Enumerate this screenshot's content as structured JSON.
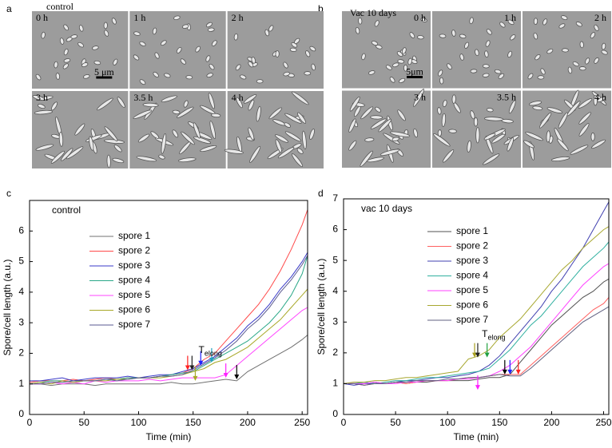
{
  "figure": {
    "labels": [
      "a",
      "b",
      "c",
      "d"
    ],
    "micrographs": [
      {
        "title": "control",
        "times": [
          "0 h",
          "1 h",
          "2 h",
          "3 h",
          "3.5 h",
          "4 h"
        ],
        "scale": "5 μm"
      },
      {
        "title": "Vac 10 days",
        "times": [
          "0 h",
          "1 h",
          "2 h",
          "3 h",
          "3.5 h",
          "4 h"
        ],
        "scale": "5μm"
      }
    ]
  },
  "chart_data": [
    {
      "type": "line",
      "title": "control",
      "x_label": "Time (min)",
      "y_label": "Spore/cell length (a.u.)",
      "annotation": {
        "text": "T",
        "sub": "elong"
      },
      "xlim": [
        0,
        255
      ],
      "xticks": [
        0,
        50,
        100,
        150,
        200,
        250
      ],
      "ylim": [
        0,
        7
      ],
      "yticks": [
        0,
        1,
        2,
        3,
        4,
        5,
        6
      ],
      "x": [
        0,
        10,
        20,
        30,
        40,
        50,
        60,
        70,
        80,
        90,
        100,
        110,
        120,
        130,
        140,
        150,
        160,
        170,
        180,
        190,
        200,
        210,
        220,
        230,
        240,
        250,
        255
      ],
      "series": [
        {
          "name": "spore 1",
          "color": "#707070",
          "values": [
            1.0,
            1.0,
            0.95,
            1.0,
            1.0,
            1.0,
            0.95,
            1.0,
            1.0,
            1.0,
            1.0,
            1.0,
            1.0,
            1.05,
            1.0,
            1.0,
            1.05,
            1.1,
            1.15,
            1.1,
            1.4,
            1.6,
            1.8,
            2.0,
            2.2,
            2.45,
            2.6
          ]
        },
        {
          "name": "spore 2",
          "color": "#ff4a4a",
          "values": [
            1.05,
            1.1,
            1.1,
            1.1,
            1.15,
            1.1,
            1.15,
            1.2,
            1.15,
            1.2,
            1.2,
            1.2,
            1.25,
            1.3,
            1.35,
            1.5,
            1.8,
            2.0,
            2.4,
            2.8,
            3.2,
            3.6,
            4.1,
            4.7,
            5.4,
            6.2,
            6.7
          ]
        },
        {
          "name": "spore 3",
          "color": "#3a3ac8",
          "values": [
            1.1,
            1.1,
            1.15,
            1.2,
            1.1,
            1.15,
            1.2,
            1.2,
            1.2,
            1.25,
            1.2,
            1.25,
            1.3,
            1.3,
            1.4,
            1.5,
            1.7,
            1.9,
            2.2,
            2.5,
            2.9,
            3.2,
            3.6,
            4.1,
            4.5,
            5.0,
            5.3
          ]
        },
        {
          "name": "spore 4",
          "color": "#2aa888",
          "values": [
            1.0,
            1.05,
            1.1,
            1.1,
            1.05,
            1.1,
            1.1,
            1.15,
            1.15,
            1.2,
            1.2,
            1.2,
            1.25,
            1.3,
            1.35,
            1.4,
            1.6,
            1.8,
            2.0,
            2.2,
            2.4,
            2.7,
            3.0,
            3.4,
            3.9,
            4.6,
            5.2
          ]
        },
        {
          "name": "spore 5",
          "color": "#ff44ff",
          "values": [
            1.0,
            1.0,
            1.05,
            1.0,
            1.05,
            1.0,
            1.1,
            1.05,
            1.1,
            1.1,
            1.1,
            1.15,
            1.1,
            1.15,
            1.2,
            1.2,
            1.2,
            1.2,
            1.3,
            1.6,
            1.9,
            2.2,
            2.5,
            2.8,
            3.1,
            3.4,
            3.5
          ]
        },
        {
          "name": "spore 6",
          "color": "#a8a828",
          "values": [
            1.0,
            1.05,
            1.0,
            1.1,
            1.05,
            1.1,
            1.1,
            1.1,
            1.15,
            1.15,
            1.2,
            1.2,
            1.2,
            1.25,
            1.3,
            1.4,
            1.5,
            1.7,
            1.8,
            2.0,
            2.2,
            2.5,
            2.8,
            3.1,
            3.5,
            3.9,
            4.1
          ]
        },
        {
          "name": "spore 7",
          "color": "#5a5a90",
          "values": [
            1.0,
            1.0,
            1.05,
            1.05,
            1.1,
            1.1,
            1.1,
            1.15,
            1.1,
            1.15,
            1.2,
            1.2,
            1.25,
            1.25,
            1.3,
            1.45,
            1.65,
            1.85,
            2.1,
            2.4,
            2.8,
            3.1,
            3.5,
            4.0,
            4.4,
            4.9,
            5.2
          ]
        }
      ],
      "arrows": [
        {
          "x": 145,
          "y": 1.45,
          "color": "#ff2020"
        },
        {
          "x": 149,
          "y": 1.45,
          "color": "#202020"
        },
        {
          "x": 152,
          "y": 1.1,
          "color": "#a8a828"
        },
        {
          "x": 157,
          "y": 1.6,
          "color": "#2020ff"
        },
        {
          "x": 167,
          "y": 1.7,
          "color": "#20a0c0"
        },
        {
          "x": 180,
          "y": 1.2,
          "color": "#ff20ff"
        },
        {
          "x": 190,
          "y": 1.15,
          "color": "#000000"
        }
      ]
    },
    {
      "type": "line",
      "title": "vac 10 days",
      "x_label": "Time (min)",
      "y_label": "Spore/cell length (a.u.)",
      "annotation": {
        "text": "T",
        "sub": "elong"
      },
      "xlim": [
        0,
        255
      ],
      "xticks": [
        0,
        50,
        100,
        150,
        200,
        250
      ],
      "ylim": [
        0,
        7
      ],
      "yticks": [
        0,
        1,
        2,
        3,
        4,
        5,
        6,
        7
      ],
      "x": [
        0,
        10,
        20,
        30,
        40,
        50,
        60,
        70,
        80,
        90,
        100,
        110,
        120,
        130,
        140,
        150,
        160,
        170,
        180,
        190,
        200,
        210,
        220,
        230,
        240,
        250,
        255
      ],
      "series": [
        {
          "name": "spore 1",
          "color": "#505050",
          "values": [
            1.0,
            1.0,
            1.0,
            1.05,
            1.0,
            1.05,
            1.0,
            1.05,
            1.05,
            1.1,
            1.1,
            1.1,
            1.1,
            1.15,
            1.2,
            1.2,
            1.3,
            1.7,
            2.1,
            2.5,
            2.9,
            3.2,
            3.5,
            3.8,
            4.0,
            4.3,
            4.4
          ]
        },
        {
          "name": "spore 2",
          "color": "#ff6060",
          "values": [
            1.0,
            1.0,
            0.95,
            1.0,
            1.0,
            1.05,
            1.0,
            1.05,
            1.1,
            1.1,
            1.1,
            1.15,
            1.2,
            1.2,
            1.25,
            1.3,
            1.3,
            1.3,
            1.6,
            1.9,
            2.2,
            2.5,
            2.8,
            3.1,
            3.4,
            3.6,
            3.8
          ]
        },
        {
          "name": "spore 3",
          "color": "#4040b0",
          "values": [
            1.0,
            0.95,
            1.0,
            1.0,
            1.0,
            1.05,
            1.1,
            1.1,
            1.15,
            1.2,
            1.2,
            1.25,
            1.3,
            1.4,
            1.6,
            1.9,
            2.3,
            2.7,
            3.1,
            3.5,
            4.0,
            4.4,
            4.9,
            5.4,
            6.0,
            6.6,
            6.9
          ]
        },
        {
          "name": "spore 4",
          "color": "#30b0a0",
          "values": [
            1.0,
            1.0,
            1.05,
            1.0,
            1.05,
            1.1,
            1.1,
            1.15,
            1.2,
            1.2,
            1.25,
            1.3,
            1.35,
            1.4,
            1.5,
            1.8,
            2.1,
            2.5,
            2.9,
            3.2,
            3.6,
            4.0,
            4.4,
            4.8,
            5.1,
            5.4,
            5.6
          ]
        },
        {
          "name": "spore 5",
          "color": "#ff40ff",
          "values": [
            1.0,
            1.0,
            1.0,
            1.05,
            1.0,
            1.0,
            1.05,
            1.05,
            1.1,
            1.1,
            1.1,
            1.15,
            1.15,
            1.2,
            1.25,
            1.4,
            1.6,
            1.9,
            2.2,
            2.6,
            3.0,
            3.4,
            3.8,
            4.2,
            4.5,
            4.8,
            4.9
          ]
        },
        {
          "name": "spore 6",
          "color": "#a8a830",
          "values": [
            1.0,
            1.05,
            1.05,
            1.1,
            1.1,
            1.15,
            1.2,
            1.2,
            1.25,
            1.3,
            1.35,
            1.4,
            1.8,
            1.9,
            2.1,
            2.5,
            2.8,
            3.1,
            3.5,
            3.9,
            4.3,
            4.7,
            5.0,
            5.4,
            5.7,
            6.0,
            6.1
          ]
        },
        {
          "name": "spore 7",
          "color": "#606080",
          "values": [
            1.0,
            1.0,
            0.95,
            1.0,
            1.0,
            1.05,
            1.05,
            1.1,
            1.1,
            1.1,
            1.15,
            1.15,
            1.2,
            1.2,
            1.25,
            1.3,
            1.25,
            1.25,
            1.5,
            1.8,
            2.1,
            2.4,
            2.7,
            3.0,
            3.2,
            3.4,
            3.5
          ]
        }
      ],
      "arrows": [
        {
          "x": 126,
          "y": 1.85,
          "color": "#a8a020"
        },
        {
          "x": 129,
          "y": 1.85,
          "color": "#202020"
        },
        {
          "x": 138,
          "y": 1.85,
          "color": "#20a040"
        },
        {
          "x": 129,
          "y": 0.8,
          "color": "#ff20ff"
        },
        {
          "x": 155,
          "y": 1.3,
          "color": "#000000"
        },
        {
          "x": 160,
          "y": 1.3,
          "color": "#2020ff"
        },
        {
          "x": 168,
          "y": 1.3,
          "color": "#ff2020"
        }
      ]
    }
  ]
}
